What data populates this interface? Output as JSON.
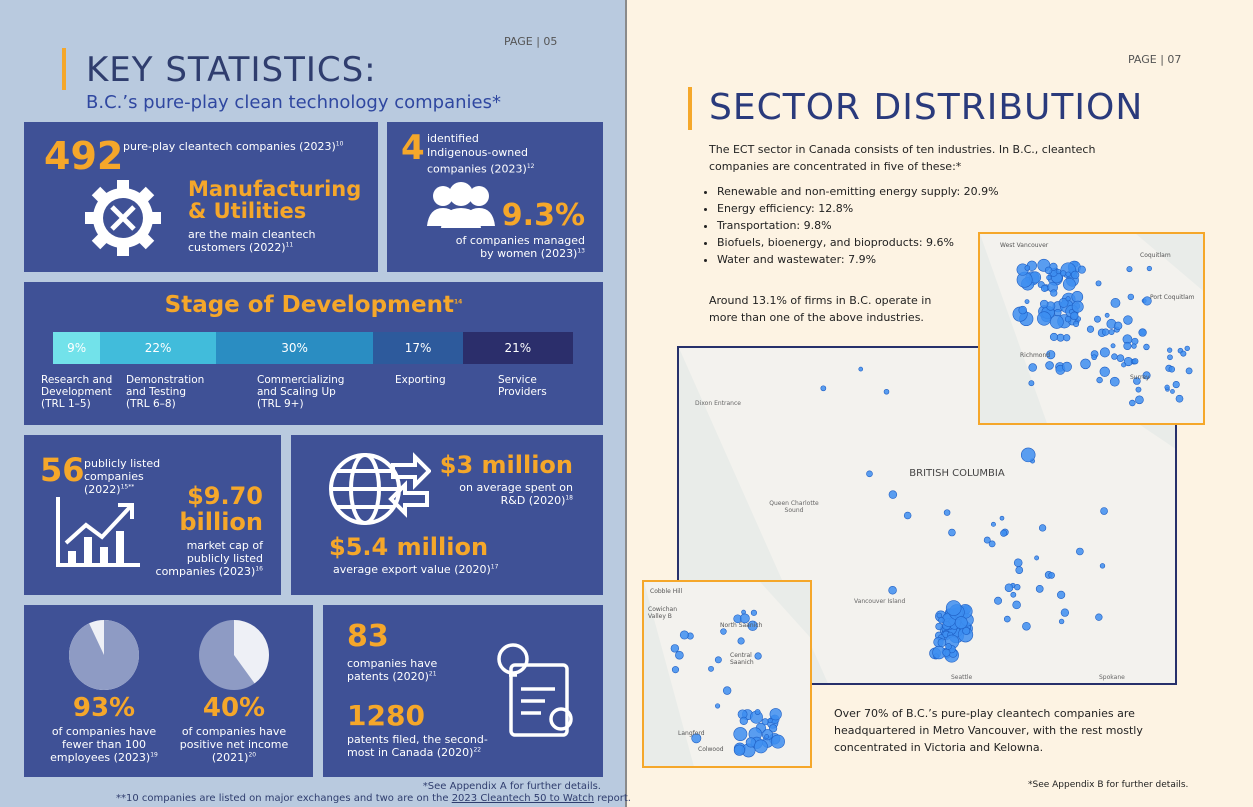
{
  "left_page": {
    "page_label": "PAGE | 05",
    "title": "KEY STATISTICS:",
    "subtitle": "B.C.’s pure-play clean technology companies*",
    "companies": {
      "number": "492",
      "text": "pure-play cleantech companies (2023)",
      "note": "10"
    },
    "customers": {
      "heading": "Manufacturing & Utilities",
      "text": "are the main cleantech customers (2022)",
      "note": "11"
    },
    "indigenous": {
      "number": "4",
      "text": "identified Indigenous-owned companies (2023)",
      "note": "12"
    },
    "women": {
      "number": "9.3%",
      "text": "of companies managed by women (2023)",
      "note": "13"
    },
    "stage": {
      "title": "Stage of Development",
      "note": "14",
      "segments": [
        {
          "value": 9,
          "label": "9%",
          "name": "Research and Development (TRL 1–5)",
          "color": "#72e2ea"
        },
        {
          "value": 22,
          "label": "22%",
          "name": "Demonstration and Testing (TRL 6–8)",
          "color": "#41bcdb"
        },
        {
          "value": 30,
          "label": "30%",
          "name": "Commercializing and Scaling Up (TRL 9+)",
          "color": "#2a8dc2"
        },
        {
          "value": 17,
          "label": "17%",
          "name": "Exporting",
          "color": "#2d5a9c"
        },
        {
          "value": 21,
          "label": "21%",
          "name": "Service Providers",
          "color": "#2b2e6b"
        }
      ]
    },
    "listed": {
      "number": "56",
      "text": "publicly listed companies (2022)",
      "note": "15**"
    },
    "market_cap": {
      "number": "$9.70 billion",
      "text": "market cap of publicly listed companies (2023)",
      "note": "16"
    },
    "rd": {
      "number": "$3 million",
      "text": "on average spent on R&D (2020)",
      "note": "18"
    },
    "export": {
      "number": "$5.4 million",
      "text": "average export value (2020)",
      "note": "17"
    },
    "employees": {
      "value": 93,
      "label": "93%",
      "text": "of companies have fewer than 100 employees (2023)",
      "note": "19",
      "color": "#8e9bc4",
      "rest_color": "#eef0f6"
    },
    "income": {
      "value": 40,
      "label": "40%",
      "text": "of companies have positive net income (2021)",
      "note": "20",
      "color": "#eef0f6",
      "rest_color": "#8e9bc4"
    },
    "patents": {
      "number": "83",
      "text": "companies have patents (2020)",
      "note": "21"
    },
    "filed": {
      "number": "1280",
      "text": "patents filed, the second-most in Canada (2020)",
      "note": "22"
    },
    "footnote_a": "*See Appendix A for further details.",
    "footnote_b": [
      "**10 companies are listed on major exchanges and two are on the ",
      "2023 Cleantech 50 to Watch",
      " report."
    ]
  },
  "right_page": {
    "page_label": "PAGE | 07",
    "title": "SECTOR DISTRIBUTION",
    "intro": "The ECT sector in Canada consists of ten industries. In B.C., cleantech companies are concentrated in five of these:*",
    "sectors": [
      "Renewable and non-emitting energy supply: 20.9%",
      "Energy efficiency: 12.8%",
      "Transportation: 9.8%",
      "Biofuels, bioenergy, and bioproducts: 9.6%",
      "Water and wastewater: 7.9%"
    ],
    "overlap": "Around 13.1% of firms in B.C. operate in more than one of the above industries.",
    "map_labels": [
      "BRITISH COLUMBIA",
      "Queen Charlotte Sound",
      "Dixon Entrance",
      "Vancouver Island",
      "Seattle",
      "Spokane"
    ],
    "metro_labels": [
      "West Vancouver",
      "Coquitlam",
      "Port Coquitlam",
      "Richmond",
      "Surrey"
    ],
    "island_labels": [
      "Cobble Hill",
      "Cowichan Valley B",
      "North Saanich",
      "Central Saanich",
      "Langford",
      "Colwood"
    ],
    "caption": "Over 70% of B.C.’s pure-play cleantech companies are headquartered in Metro Vancouver, with the rest mostly concentrated in Victoria and Kelowna.",
    "footnote": "*See Appendix B for further details."
  }
}
